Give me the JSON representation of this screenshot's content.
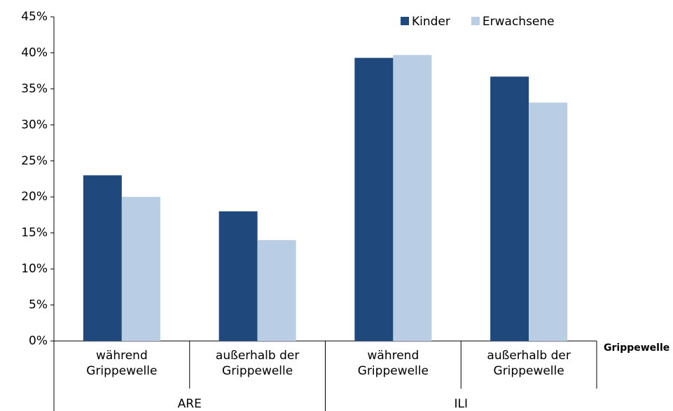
{
  "chart_data": {
    "type": "bar",
    "categories": [
      "während Grippewelle",
      "außerhalb der Grippewelle",
      "während Grippewelle",
      "außerhalb der Grippewelle"
    ],
    "category_groups": [
      "ARE",
      "ILI"
    ],
    "x_label": "Grippewelle",
    "series": [
      {
        "name": "Kinder",
        "color": "#1f497d",
        "values": [
          23,
          18,
          39.3,
          36.7
        ]
      },
      {
        "name": "Erwachsene",
        "color": "#b9cde5",
        "values": [
          20,
          14,
          39.7,
          33.1
        ]
      }
    ],
    "ylim": [
      0,
      45
    ],
    "yticks": [
      {
        "value": 0,
        "label": "0%"
      },
      {
        "value": 5,
        "label": "5%"
      },
      {
        "value": 10,
        "label": "10%"
      },
      {
        "value": 15,
        "label": "15%"
      },
      {
        "value": 20,
        "label": "20%"
      },
      {
        "value": 25,
        "label": "25%"
      },
      {
        "value": 30,
        "label": "30%"
      },
      {
        "value": 35,
        "label": "35%"
      },
      {
        "value": 40,
        "label": "40%"
      },
      {
        "value": 45,
        "label": "45%"
      }
    ],
    "grid": false,
    "legend": "top-right"
  }
}
